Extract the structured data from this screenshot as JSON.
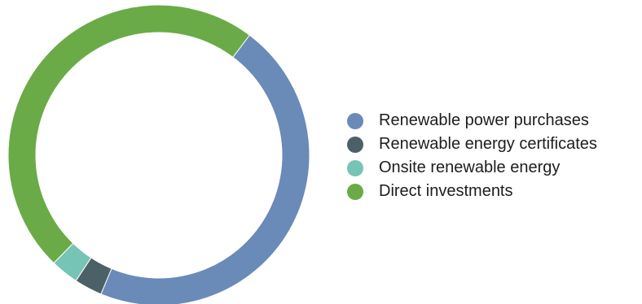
{
  "chart_data": {
    "type": "pie",
    "variant": "donut",
    "title": "",
    "legend_position": "right",
    "categories": [
      "Renewable power purchases",
      "Renewable energy certificates",
      "Onsite renewable energy",
      "Direct investments"
    ],
    "values": [
      46,
      3,
      3,
      48
    ],
    "unit": "%",
    "colors": [
      "#6a8ab8",
      "#4c6068",
      "#76c4b6",
      "#6aab47"
    ],
    "start_angle_deg": 37,
    "direction": "clockwise"
  }
}
